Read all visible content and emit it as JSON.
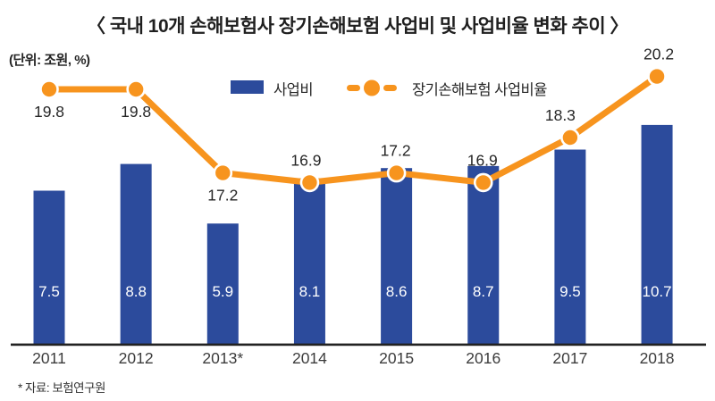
{
  "title": "〈 국내 10개 손해보험사 장기손해보험 사업비 및 사업비율 변화 추이 〉",
  "unit_label": "(단위: 조원, %)",
  "legend": {
    "bar_label": "사업비",
    "line_label": "장기손해보험 사업비율"
  },
  "source_note": "* 자료: 보험연구원",
  "colors": {
    "bar": "#2C4B9C",
    "line": "#F7941E",
    "axis": "#222222",
    "category_text": "#3C3C3C",
    "bar_value_text": "#FFFFFF",
    "line_value_text": "#262626",
    "dot_ring": "#FFFFFF"
  },
  "chart_data": {
    "type": "bar+line combo",
    "title": "국내 10개 손해보험사 장기손해보험 사업비 및 사업비율 변화 추이",
    "unit": "조원, %",
    "categories": [
      "2011",
      "2012",
      "2013*",
      "2014",
      "2015",
      "2016",
      "2017",
      "2018"
    ],
    "series": [
      {
        "name": "사업비",
        "type": "bar",
        "values": [
          7.5,
          8.8,
          5.9,
          8.1,
          8.6,
          8.7,
          9.5,
          10.7
        ]
      },
      {
        "name": "장기손해보험 사업비율",
        "type": "line",
        "values": [
          19.8,
          19.8,
          17.2,
          16.9,
          17.2,
          16.9,
          18.3,
          20.2
        ],
        "label_positions": [
          "below",
          "below",
          "below",
          "above",
          "above",
          "above",
          "above",
          "above"
        ]
      }
    ],
    "value_labels": {
      "bar": [
        "7.5",
        "8.8",
        "5.9",
        "8.1",
        "8.6",
        "8.7",
        "9.5",
        "10.7"
      ],
      "line": [
        "19.8",
        "19.8",
        "17.2",
        "16.9",
        "17.2",
        "16.9",
        "18.3",
        "20.2"
      ]
    },
    "bar_axis_range": [
      0,
      16.8
    ],
    "line_axis_range": [
      8.7,
      22.2
    ],
    "grid": false,
    "legend_position": "top-center",
    "source": "자료: 보험연구원"
  }
}
